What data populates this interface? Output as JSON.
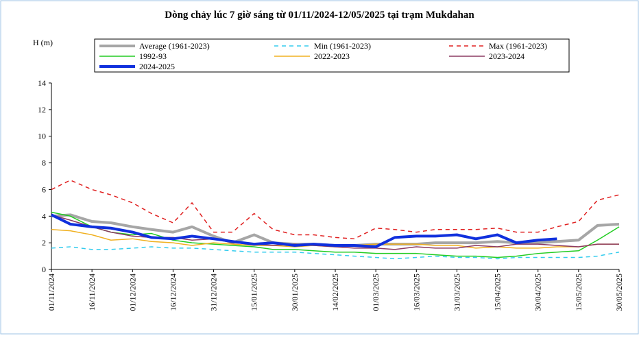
{
  "chart_data": {
    "type": "line",
    "title": "Dòng chảy lúc 7 giờ sáng từ 01/11/2024-12/05/2025 tại trạm Mukdahan",
    "y_label": "H (m)",
    "x": [
      "01/11/2024",
      "08/11/2024",
      "16/11/2024",
      "23/11/2024",
      "01/12/2024",
      "08/12/2024",
      "16/12/2024",
      "23/12/2024",
      "31/12/2024",
      "07/01/2025",
      "15/01/2025",
      "22/01/2025",
      "30/01/2025",
      "06/02/2025",
      "14/02/2025",
      "21/02/2025",
      "01/03/2025",
      "08/03/2025",
      "16/03/2025",
      "23/03/2025",
      "31/03/2025",
      "07/04/2025",
      "15/04/2025",
      "22/04/2025",
      "30/04/2025",
      "07/05/2025",
      "15/05/2025",
      "22/05/2025",
      "30/05/2025"
    ],
    "xlim": [
      "01/11/2024",
      "30/05/2025"
    ],
    "xticks": [
      "01/11/2024",
      "16/11/2024",
      "01/12/2024",
      "16/12/2024",
      "31/12/2024",
      "15/01/2025",
      "30/01/2025",
      "14/02/2025",
      "01/03/2025",
      "16/03/2025",
      "31/03/2025",
      "15/04/2025",
      "30/04/2025",
      "15/05/2025",
      "30/05/2025"
    ],
    "ylim": [
      0,
      14
    ],
    "yticks": [
      0,
      2,
      4,
      6,
      8,
      10,
      12,
      14
    ],
    "grid": false,
    "series": [
      {
        "name": "Average (1961-2023)",
        "color": "#a6a6a6",
        "line_width": 4,
        "dashed": false,
        "values": [
          4.0,
          4.1,
          3.6,
          3.5,
          3.2,
          3.0,
          2.8,
          3.2,
          2.5,
          2.0,
          2.6,
          2.0,
          1.9,
          1.9,
          1.8,
          1.8,
          1.9,
          1.9,
          1.9,
          2.0,
          2.0,
          2.0,
          2.1,
          2.0,
          2.0,
          2.1,
          2.2,
          3.3,
          3.4
        ]
      },
      {
        "name": "Min (1961-2023)",
        "color": "#33ccee",
        "line_width": 1.5,
        "dashed": true,
        "values": [
          1.6,
          1.7,
          1.5,
          1.5,
          1.6,
          1.7,
          1.6,
          1.6,
          1.5,
          1.4,
          1.3,
          1.3,
          1.3,
          1.2,
          1.1,
          1.0,
          0.9,
          0.8,
          0.9,
          1.0,
          0.9,
          0.9,
          0.8,
          0.9,
          0.9,
          0.9,
          0.9,
          1.0,
          1.3
        ]
      },
      {
        "name": "Max (1961-2023)",
        "color": "#e02020",
        "line_width": 1.5,
        "dashed": true,
        "values": [
          6.0,
          6.7,
          6.0,
          5.6,
          5.0,
          4.2,
          3.5,
          5.0,
          2.8,
          2.8,
          4.2,
          3.0,
          2.6,
          2.6,
          2.4,
          2.3,
          3.1,
          3.0,
          2.8,
          3.0,
          3.0,
          3.0,
          3.1,
          2.8,
          2.8,
          3.2,
          3.6,
          5.2,
          5.6
        ]
      },
      {
        "name": "1992-93",
        "color": "#22cc22",
        "line_width": 1.5,
        "dashed": false,
        "values": [
          4.3,
          4.0,
          3.2,
          2.8,
          2.6,
          2.7,
          2.2,
          2.0,
          1.9,
          1.8,
          1.7,
          1.5,
          1.5,
          1.4,
          1.3,
          1.3,
          1.2,
          1.2,
          1.2,
          1.1,
          1.0,
          1.0,
          0.9,
          1.0,
          1.2,
          1.3,
          1.4,
          2.2,
          3.2
        ]
      },
      {
        "name": "2022-2023",
        "color": "#f0b020",
        "line_width": 1.5,
        "dashed": false,
        "values": [
          3.0,
          2.9,
          2.6,
          2.2,
          2.3,
          2.1,
          2.0,
          1.8,
          2.0,
          1.9,
          1.8,
          1.8,
          1.7,
          1.8,
          1.7,
          1.8,
          1.9,
          1.9,
          1.9,
          1.8,
          1.8,
          1.6,
          1.7,
          1.6,
          1.6,
          1.7,
          1.7,
          1.9,
          1.9
        ]
      },
      {
        "name": "2023-2024",
        "color": "#8b3a62",
        "line_width": 1.5,
        "dashed": false,
        "values": [
          4.1,
          3.7,
          3.2,
          2.8,
          2.5,
          2.4,
          2.4,
          2.2,
          2.3,
          2.0,
          1.9,
          1.8,
          1.9,
          1.8,
          1.7,
          1.6,
          1.6,
          1.5,
          1.7,
          1.6,
          1.6,
          1.8,
          1.7,
          1.9,
          1.9,
          1.8,
          1.7,
          1.9,
          1.9
        ]
      },
      {
        "name": "2024-2025",
        "color": "#1030dd",
        "line_width": 4,
        "dashed": false,
        "values": [
          4.1,
          3.4,
          3.2,
          3.1,
          2.8,
          2.4,
          2.3,
          2.5,
          2.3,
          2.1,
          1.9,
          2.0,
          1.8,
          1.9,
          1.8,
          1.8,
          1.7,
          2.4,
          2.5,
          2.5,
          2.6,
          2.3,
          2.6,
          2.0,
          2.2,
          2.3,
          null,
          null,
          null
        ]
      }
    ]
  }
}
